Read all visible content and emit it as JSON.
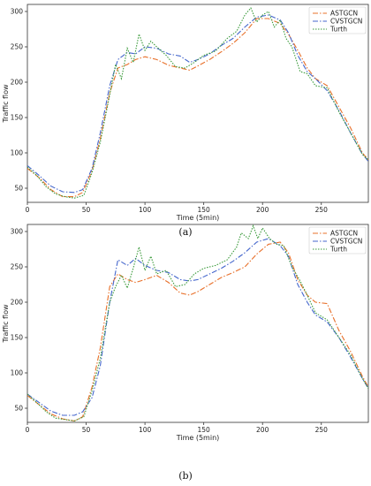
{
  "chart_data": [
    {
      "type": "line",
      "panel_label": "(a)",
      "xlabel": "Time (5min)",
      "ylabel": "Traffic flow",
      "xlim": [
        0,
        290
      ],
      "ylim": [
        30,
        310
      ],
      "xticks": [
        0,
        50,
        100,
        150,
        200,
        250
      ],
      "yticks": [
        50,
        100,
        150,
        200,
        250,
        300
      ],
      "legend_position": "top-right",
      "series": [
        {
          "name": "ASTGCN",
          "color": "#e8702a",
          "dash": "6,2,1.5,2",
          "points": [
            [
              0,
              78
            ],
            [
              10,
              65
            ],
            [
              20,
              48
            ],
            [
              30,
              38
            ],
            [
              40,
              38
            ],
            [
              47,
              44
            ],
            [
              55,
              75
            ],
            [
              62,
              120
            ],
            [
              70,
              185
            ],
            [
              77,
              220
            ],
            [
              85,
              225
            ],
            [
              92,
              232
            ],
            [
              100,
              236
            ],
            [
              110,
              232
            ],
            [
              120,
              224
            ],
            [
              130,
              220
            ],
            [
              138,
              217
            ],
            [
              145,
              223
            ],
            [
              155,
              232
            ],
            [
              165,
              243
            ],
            [
              175,
              255
            ],
            [
              185,
              270
            ],
            [
              195,
              290
            ],
            [
              205,
              290
            ],
            [
              215,
              283
            ],
            [
              222,
              268
            ],
            [
              230,
              245
            ],
            [
              238,
              220
            ],
            [
              245,
              205
            ],
            [
              255,
              195
            ],
            [
              265,
              165
            ],
            [
              275,
              135
            ],
            [
              285,
              100
            ],
            [
              290,
              90
            ]
          ]
        },
        {
          "name": "CVSTGCN",
          "color": "#4466cc",
          "dash": "6,2,1.5,2",
          "points": [
            [
              0,
              82
            ],
            [
              10,
              68
            ],
            [
              20,
              53
            ],
            [
              30,
              45
            ],
            [
              40,
              44
            ],
            [
              47,
              48
            ],
            [
              55,
              78
            ],
            [
              62,
              128
            ],
            [
              70,
              195
            ],
            [
              77,
              232
            ],
            [
              85,
              242
            ],
            [
              92,
              240
            ],
            [
              100,
              250
            ],
            [
              110,
              248
            ],
            [
              120,
              240
            ],
            [
              130,
              237
            ],
            [
              138,
              228
            ],
            [
              145,
              232
            ],
            [
              155,
              240
            ],
            [
              165,
              252
            ],
            [
              175,
              262
            ],
            [
              185,
              278
            ],
            [
              195,
              292
            ],
            [
              205,
              295
            ],
            [
              215,
              288
            ],
            [
              222,
              270
            ],
            [
              230,
              238
            ],
            [
              238,
              215
            ],
            [
              245,
              205
            ],
            [
              255,
              188
            ],
            [
              265,
              160
            ],
            [
              275,
              128
            ],
            [
              285,
              98
            ],
            [
              290,
              88
            ]
          ]
        },
        {
          "name": "Turth",
          "color": "#3a9a3a",
          "dash": "1.5,1.5",
          "points": [
            [
              0,
              80
            ],
            [
              8,
              68
            ],
            [
              16,
              52
            ],
            [
              24,
              42
            ],
            [
              32,
              38
            ],
            [
              40,
              36
            ],
            [
              48,
              40
            ],
            [
              55,
              72
            ],
            [
              62,
              115
            ],
            [
              70,
              182
            ],
            [
              75,
              225
            ],
            [
              80,
              205
            ],
            [
              85,
              248
            ],
            [
              90,
              228
            ],
            [
              95,
              268
            ],
            [
              100,
              245
            ],
            [
              105,
              258
            ],
            [
              110,
              250
            ],
            [
              118,
              238
            ],
            [
              126,
              222
            ],
            [
              134,
              220
            ],
            [
              142,
              228
            ],
            [
              150,
              238
            ],
            [
              160,
              244
            ],
            [
              170,
              262
            ],
            [
              178,
              272
            ],
            [
              185,
              295
            ],
            [
              190,
              305
            ],
            [
              195,
              285
            ],
            [
              200,
              295
            ],
            [
              205,
              300
            ],
            [
              210,
              278
            ],
            [
              215,
              288
            ],
            [
              220,
              262
            ],
            [
              225,
              250
            ],
            [
              232,
              215
            ],
            [
              238,
              212
            ],
            [
              245,
              195
            ],
            [
              255,
              192
            ],
            [
              265,
              158
            ],
            [
              275,
              128
            ],
            [
              285,
              98
            ],
            [
              290,
              90
            ]
          ]
        }
      ]
    },
    {
      "type": "line",
      "panel_label": "(b)",
      "xlabel": "Time (5min)",
      "ylabel": "Traffic flow",
      "xlim": [
        0,
        290
      ],
      "ylim": [
        30,
        310
      ],
      "xticks": [
        0,
        50,
        100,
        150,
        200,
        250
      ],
      "yticks": [
        50,
        100,
        150,
        200,
        250,
        300
      ],
      "legend_position": "top-right",
      "series": [
        {
          "name": "ASTGCN",
          "color": "#e8702a",
          "dash": "6,2,1.5,2",
          "points": [
            [
              0,
              68
            ],
            [
              10,
              55
            ],
            [
              20,
              42
            ],
            [
              30,
              35
            ],
            [
              40,
              32
            ],
            [
              47,
              38
            ],
            [
              55,
              80
            ],
            [
              62,
              135
            ],
            [
              70,
              222
            ],
            [
              77,
              240
            ],
            [
              85,
              232
            ],
            [
              92,
              228
            ],
            [
              100,
              232
            ],
            [
              110,
              238
            ],
            [
              120,
              228
            ],
            [
              130,
              213
            ],
            [
              138,
              210
            ],
            [
              145,
              215
            ],
            [
              155,
              225
            ],
            [
              165,
              235
            ],
            [
              175,
              242
            ],
            [
              185,
              250
            ],
            [
              195,
              268
            ],
            [
              205,
              282
            ],
            [
              215,
              285
            ],
            [
              222,
              270
            ],
            [
              230,
              232
            ],
            [
              238,
              210
            ],
            [
              245,
              200
            ],
            [
              255,
              198
            ],
            [
              265,
              160
            ],
            [
              275,
              130
            ],
            [
              285,
              95
            ],
            [
              290,
              80
            ]
          ]
        },
        {
          "name": "CVSTGCN",
          "color": "#4466cc",
          "dash": "6,2,1.5,2",
          "points": [
            [
              0,
              70
            ],
            [
              10,
              58
            ],
            [
              20,
              46
            ],
            [
              30,
              40
            ],
            [
              40,
              40
            ],
            [
              47,
              45
            ],
            [
              55,
              65
            ],
            [
              62,
              110
            ],
            [
              70,
              200
            ],
            [
              77,
              260
            ],
            [
              85,
              252
            ],
            [
              92,
              262
            ],
            [
              100,
              252
            ],
            [
              110,
              245
            ],
            [
              120,
              242
            ],
            [
              130,
              232
            ],
            [
              138,
              230
            ],
            [
              145,
              232
            ],
            [
              155,
              240
            ],
            [
              165,
              248
            ],
            [
              175,
              258
            ],
            [
              185,
              270
            ],
            [
              195,
              285
            ],
            [
              205,
              290
            ],
            [
              215,
              280
            ],
            [
              222,
              265
            ],
            [
              230,
              225
            ],
            [
              238,
              200
            ],
            [
              245,
              182
            ],
            [
              255,
              172
            ],
            [
              265,
              150
            ],
            [
              275,
              122
            ],
            [
              285,
              92
            ],
            [
              290,
              78
            ]
          ]
        },
        {
          "name": "Turth",
          "color": "#3a9a3a",
          "dash": "1.5,1.5",
          "points": [
            [
              0,
              70
            ],
            [
              8,
              58
            ],
            [
              16,
              45
            ],
            [
              24,
              36
            ],
            [
              32,
              34
            ],
            [
              40,
              32
            ],
            [
              48,
              38
            ],
            [
              55,
              75
            ],
            [
              62,
              120
            ],
            [
              70,
              200
            ],
            [
              75,
              222
            ],
            [
              80,
              238
            ],
            [
              85,
              220
            ],
            [
              90,
              248
            ],
            [
              95,
              278
            ],
            [
              100,
              245
            ],
            [
              105,
              265
            ],
            [
              110,
              240
            ],
            [
              118,
              245
            ],
            [
              126,
              222
            ],
            [
              134,
              225
            ],
            [
              142,
              240
            ],
            [
              150,
              248
            ],
            [
              160,
              252
            ],
            [
              170,
              260
            ],
            [
              178,
              278
            ],
            [
              182,
              298
            ],
            [
              188,
              290
            ],
            [
              192,
              308
            ],
            [
              196,
              290
            ],
            [
              200,
              305
            ],
            [
              206,
              290
            ],
            [
              212,
              282
            ],
            [
              218,
              280
            ],
            [
              225,
              250
            ],
            [
              232,
              230
            ],
            [
              238,
              210
            ],
            [
              245,
              185
            ],
            [
              255,
              175
            ],
            [
              265,
              150
            ],
            [
              275,
              125
            ],
            [
              285,
              92
            ],
            [
              290,
              78
            ]
          ]
        }
      ]
    }
  ]
}
